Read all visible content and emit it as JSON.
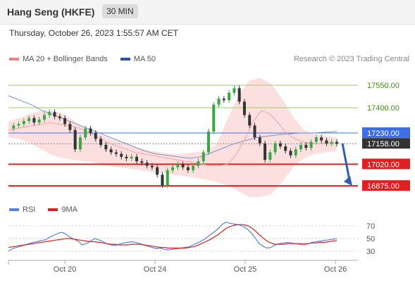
{
  "header": {
    "title": "Hang Seng (HKFE)",
    "interval": "30 MIN"
  },
  "timestamp": "Thursday, October 26, 2023 1:55:57 AM CET",
  "credit": "Research © 2023 Trading Central",
  "legend_main": [
    {
      "label": "MA 20 + Bollinger Bands",
      "color": "#f08080"
    },
    {
      "label": "MA 50",
      "color": "#2e4fa3"
    }
  ],
  "legend_rsi": [
    {
      "label": "RSI",
      "color": "#5b7fe0"
    },
    {
      "label": "9MA",
      "color": "#e02020"
    }
  ],
  "colors": {
    "resistance": "#9ccc65",
    "support": "#e02020",
    "pivot": "#3b6ee8",
    "last": "#333333",
    "arrow": "#2b5fb8"
  },
  "chart_data": [
    {
      "type": "candlestick",
      "x_tick_labels": [
        "Oct 20",
        "Oct 24",
        "Oct 25",
        "Oct 26"
      ],
      "y_range": [
        16800,
        17650
      ],
      "levels": [
        {
          "value": 17550,
          "label": "17550.00",
          "kind": "resistance"
        },
        {
          "value": 17400,
          "label": "17400.00",
          "kind": "resistance"
        },
        {
          "value": 17230,
          "label": "17230.00",
          "kind": "pivot"
        },
        {
          "value": 17158,
          "label": "17158.00",
          "kind": "last"
        },
        {
          "value": 17020,
          "label": "17020.00",
          "kind": "support"
        },
        {
          "value": 16875,
          "label": "16875.00",
          "kind": "support"
        }
      ],
      "close_path": [
        17260,
        17280,
        17290,
        17310,
        17330,
        17300,
        17320,
        17350,
        17370,
        17340,
        17330,
        17290,
        17250,
        17120,
        17200,
        17260,
        17230,
        17190,
        17150,
        17120,
        17100,
        17090,
        17070,
        17060,
        17070,
        17040,
        17030,
        17010,
        17000,
        16950,
        16880,
        16980,
        17000,
        17020,
        17000,
        16980,
        17010,
        17040,
        17100,
        17240,
        17420,
        17460,
        17450,
        17500,
        17530,
        17440,
        17350,
        17280,
        17200,
        17160,
        17050,
        17100,
        17160,
        17140,
        17110,
        17080,
        17120,
        17150,
        17130,
        17170,
        17200,
        17180,
        17160,
        17170,
        17158
      ],
      "ma20_path": [
        17250,
        17260,
        17270,
        17280,
        17290,
        17300,
        17290,
        17280,
        17270,
        17250,
        17220,
        17190,
        17160,
        17140,
        17120,
        17100,
        17090,
        17080,
        17070,
        17060,
        17050,
        17040,
        17030,
        17020,
        17010,
        17010,
        17020,
        17080,
        17180,
        17300,
        17380,
        17360,
        17300,
        17230,
        17190,
        17170,
        17160,
        17160,
        17165,
        17158
      ],
      "bb_upper_path": [
        17310,
        17330,
        17360,
        17380,
        17380,
        17360,
        17310,
        17260,
        17230,
        17200,
        17180,
        17150,
        17130,
        17110,
        17100,
        17090,
        17090,
        17100,
        17110,
        17150,
        17320,
        17480,
        17580,
        17600,
        17560,
        17460,
        17340,
        17250,
        17220,
        17210,
        17200
      ],
      "bb_lower_path": [
        17200,
        17190,
        17160,
        17120,
        17080,
        17060,
        17050,
        17040,
        17030,
        17010,
        17000,
        16990,
        16980,
        16970,
        16960,
        16950,
        16940,
        16930,
        16920,
        16900,
        16880,
        16840,
        16800,
        16800,
        16820,
        16900,
        17000,
        17060,
        17090,
        17100,
        17110
      ],
      "ma50_path": [
        17480,
        17450,
        17420,
        17380,
        17350,
        17320,
        17290,
        17260,
        17230,
        17200,
        17170,
        17140,
        17110,
        17090,
        17080,
        17070,
        17060,
        17070,
        17100,
        17130,
        17160,
        17180,
        17200,
        17210,
        17220,
        17225,
        17230,
        17230,
        17235,
        17240
      ],
      "forecast_arrow": {
        "from": 17160,
        "to": 16875
      }
    },
    {
      "type": "line",
      "name": "RSI",
      "y_range": [
        20,
        80
      ],
      "y_tick_labels": [
        "70",
        "50",
        "30"
      ],
      "y_ticks": [
        70,
        50,
        30
      ],
      "rsi_values": [
        30,
        34,
        36,
        38,
        40,
        42,
        44,
        45,
        47,
        48,
        52,
        55,
        58,
        60,
        57,
        52,
        49,
        46,
        40,
        42,
        46,
        50,
        48,
        45,
        42,
        40,
        39,
        41,
        43,
        44,
        45,
        44,
        42,
        40,
        38,
        36,
        34,
        35,
        33,
        32,
        33,
        34,
        35,
        36,
        37,
        40,
        43,
        46,
        50,
        55,
        60,
        65,
        72,
        76,
        74,
        73,
        72,
        70,
        66,
        60,
        52,
        43,
        38,
        35,
        36,
        40,
        42,
        43,
        44,
        43,
        42,
        41,
        40,
        42,
        44,
        45,
        46,
        47,
        48,
        49,
        50
      ],
      "ma9_values": [
        36,
        37,
        38,
        39,
        40,
        41,
        42,
        43,
        44,
        45,
        46,
        47,
        48,
        49,
        50,
        50,
        49,
        48,
        47,
        46,
        45,
        45,
        44,
        43,
        42,
        41,
        41,
        40,
        40,
        40,
        41,
        41,
        41,
        40,
        39,
        38,
        37,
        36,
        36,
        35,
        35,
        35,
        35,
        35,
        36,
        37,
        39,
        42,
        45,
        48,
        52,
        56,
        61,
        66,
        69,
        71,
        72,
        72,
        71,
        68,
        63,
        57,
        51,
        46,
        43,
        41,
        41,
        41,
        42,
        42,
        42,
        42,
        42,
        42,
        43,
        43,
        44,
        44,
        45,
        46,
        47
      ]
    }
  ]
}
